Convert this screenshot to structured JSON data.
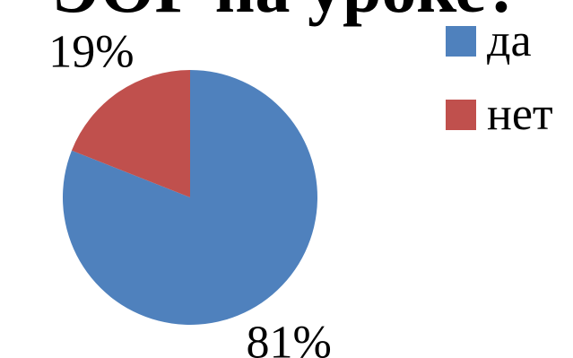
{
  "chart_data": {
    "type": "pie",
    "title": "ЭОР на уроке?",
    "categories": [
      "да",
      "нет"
    ],
    "values": [
      81,
      19
    ],
    "value_labels": [
      "81%",
      "19%"
    ],
    "colors": [
      "#4F81BD",
      "#C0504D"
    ],
    "legend_position": "top-right",
    "start_angle": "12 o'clock",
    "direction": "clockwise"
  }
}
